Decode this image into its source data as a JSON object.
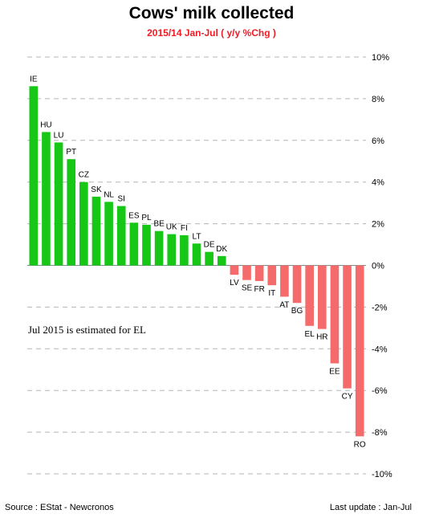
{
  "chart_data": {
    "type": "bar",
    "title": "Cows' milk collected",
    "subtitle": "2015/14 Jan-Jul   ( y/y %Chg )",
    "categories": [
      "IE",
      "HU",
      "LU",
      "PT",
      "CZ",
      "SK",
      "NL",
      "SI",
      "ES",
      "PL",
      "BE",
      "UK",
      "FI",
      "LT",
      "DE",
      "DK",
      "LV",
      "SE",
      "FR",
      "IT",
      "AT",
      "BG",
      "EL",
      "HR",
      "EE",
      "CY",
      "RO"
    ],
    "values": [
      8.6,
      6.4,
      5.9,
      5.1,
      4.0,
      3.3,
      3.05,
      2.85,
      2.05,
      1.95,
      1.65,
      1.5,
      1.45,
      1.05,
      0.65,
      0.45,
      -0.45,
      -0.7,
      -0.75,
      -0.95,
      -1.5,
      -1.8,
      -2.9,
      -3.05,
      -4.7,
      -5.9,
      -8.2
    ],
    "ylim": [
      -10,
      10
    ],
    "yticks": [
      "10%",
      "8%",
      "6%",
      "4%",
      "2%",
      "0%",
      "-2%",
      "-4%",
      "-6%",
      "-8%",
      "-10%"
    ],
    "ytick_values": [
      10,
      8,
      6,
      4,
      2,
      0,
      -2,
      -4,
      -6,
      -8,
      -10
    ],
    "grid": true,
    "colors": {
      "positive": "#16c716",
      "negative": "#f56b6b"
    }
  },
  "note": "Jul 2015 is estimated for EL",
  "footer": {
    "source": "Source : EStat - Newcronos",
    "last_update": "Last update : Jan-Jul"
  }
}
